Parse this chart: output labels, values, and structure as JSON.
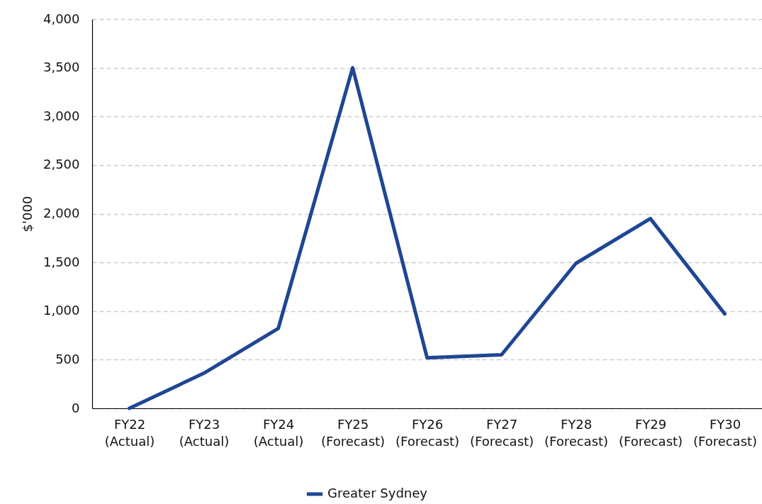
{
  "chart_data": {
    "type": "line",
    "ylabel": "$'000",
    "categories": [
      "FY22\n(Actual)",
      "FY23\n(Actual)",
      "FY24\n(Actual)",
      "FY25\n(Forecast)",
      "FY26\n(Forecast)",
      "FY27\n(Forecast)",
      "FY28\n(Forecast)",
      "FY29\n(Forecast)",
      "FY30\n(Forecast)"
    ],
    "series": [
      {
        "name": "Greater Sydney",
        "color": "#1f4695",
        "values": [
          0,
          360,
          820,
          3500,
          520,
          550,
          1490,
          1950,
          970
        ]
      }
    ],
    "ylim": [
      0,
      4000
    ],
    "yticks": [
      0,
      500,
      {
        "value": 1000,
        "label": "1,000"
      },
      {
        "value": 1500,
        "label": "1,500"
      },
      {
        "value": 2000,
        "label": "2,000"
      },
      {
        "value": 2500,
        "label": "2,500"
      },
      {
        "value": 3000,
        "label": "3,000"
      },
      {
        "value": 3500,
        "label": "3,500"
      },
      {
        "value": 4000,
        "label": "4,000"
      }
    ],
    "grid": "y",
    "legend": "bottom",
    "marker": "none",
    "line_style": "solid"
  }
}
